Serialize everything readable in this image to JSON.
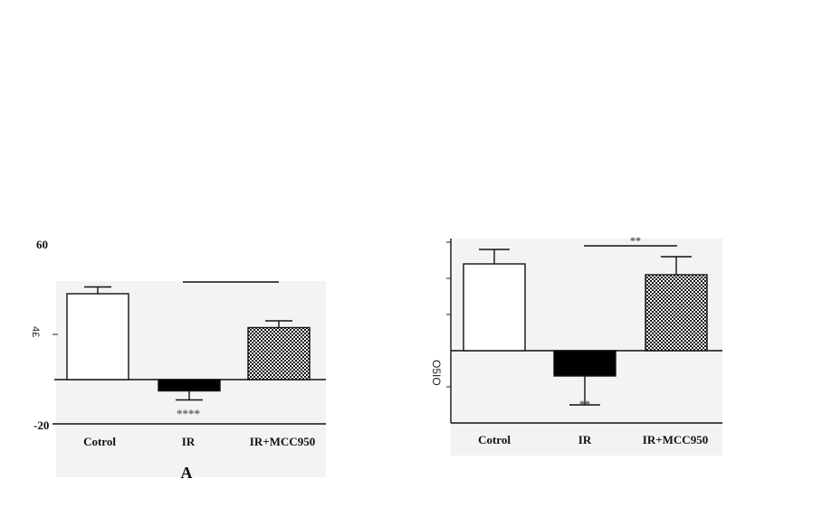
{
  "chart_data": [
    {
      "type": "bar",
      "panel_label": "A",
      "categories": [
        "Cotrol",
        "IR",
        "IR+MCC950"
      ],
      "values": [
        38,
        -5,
        23
      ],
      "errors": [
        3,
        4,
        3
      ],
      "ylim": [
        -20,
        60
      ],
      "yticks": [
        -20,
        60
      ],
      "ytick_labels": [
        "-20",
        "60"
      ],
      "y_axis_glyph": "4£",
      "annotations": [
        "****"
      ],
      "significance_bracket": true,
      "fills": [
        "#ffffff",
        "#000000",
        "checker"
      ]
    },
    {
      "type": "bar",
      "categories": [
        "Cotrol",
        "IR",
        "IR+MCC950"
      ],
      "values": [
        24,
        -7,
        21
      ],
      "errors": [
        4,
        8,
        5
      ],
      "ylim": [
        -25,
        38
      ],
      "y_axis_glyph": "O5IO",
      "annotations": [
        "**",
        "**"
      ],
      "significance_bracket": true,
      "fills": [
        "#ffffff",
        "#000000",
        "checker"
      ]
    }
  ]
}
